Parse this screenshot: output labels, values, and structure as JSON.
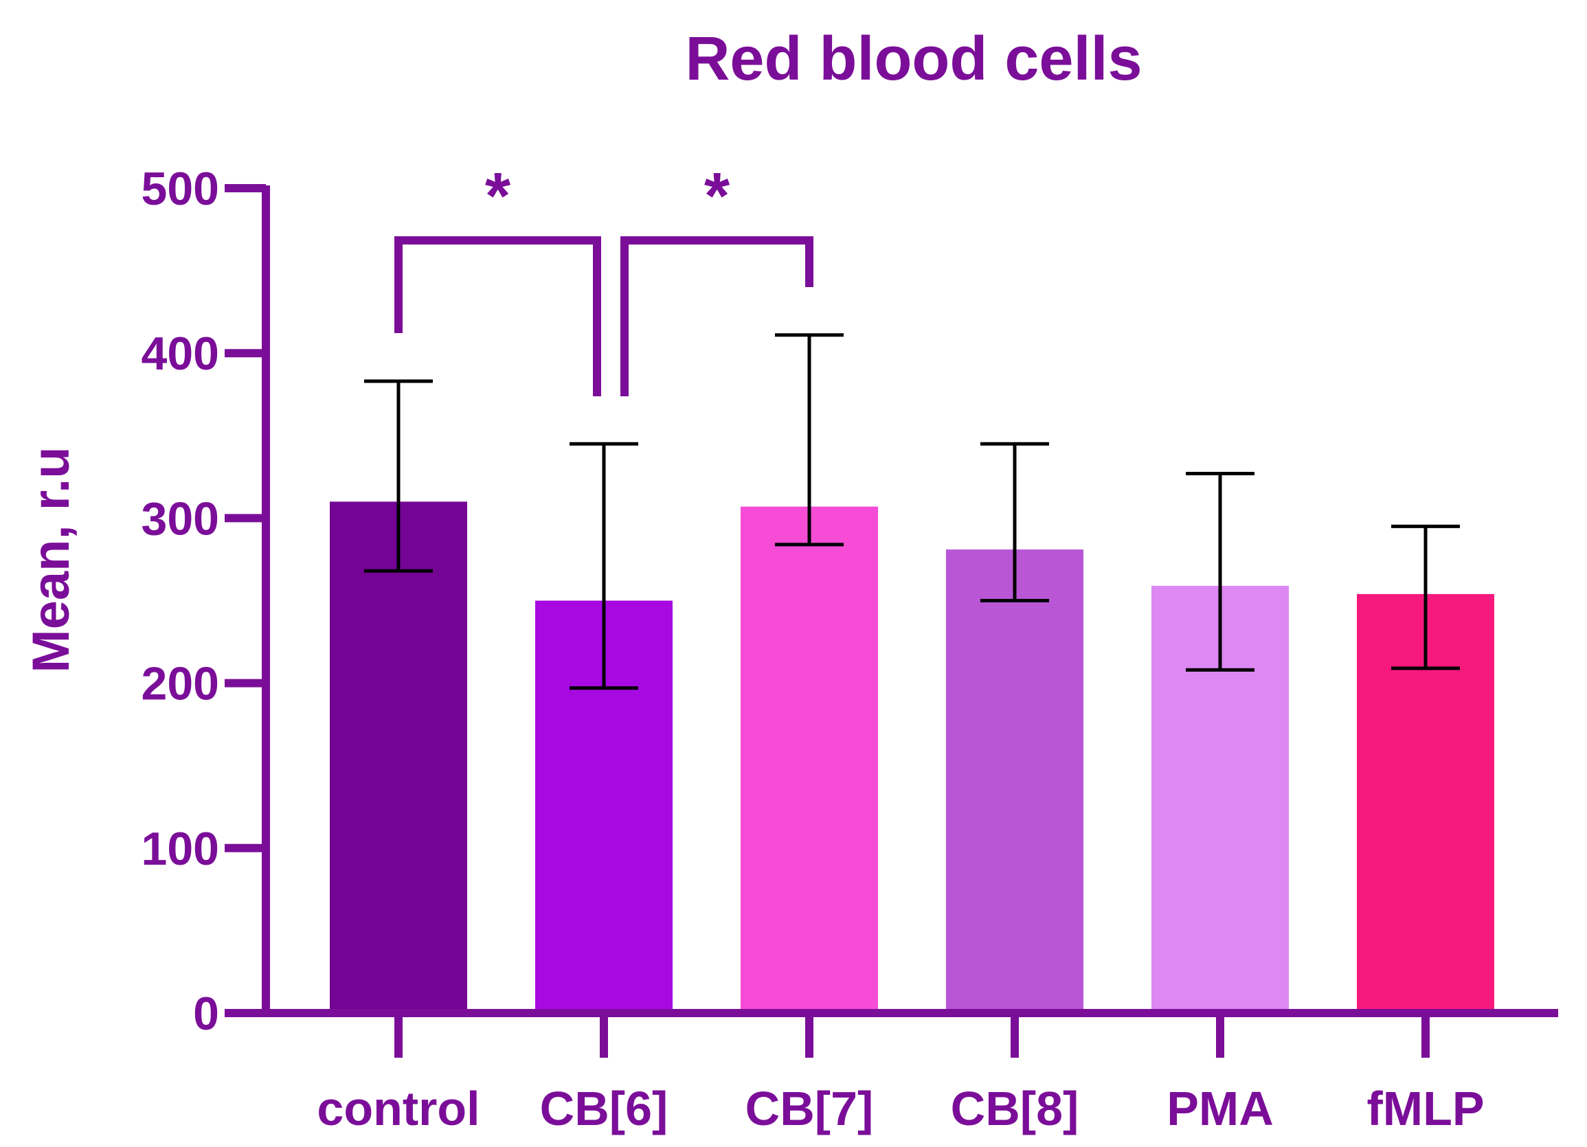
{
  "chart_data": {
    "type": "bar",
    "title": "Red blood cells",
    "xlabel": "",
    "ylabel": "Mean, r.u",
    "ylim": [
      0,
      500
    ],
    "yticks": [
      0,
      100,
      200,
      300,
      400,
      500
    ],
    "ytick_labels": [
      "0",
      "100",
      "200",
      "300",
      "400",
      "500"
    ],
    "categories": [
      "control",
      "CB[6]",
      "CB[7]",
      "CB[8]",
      "PMA",
      "fMLP"
    ],
    "values": [
      310,
      250,
      307,
      281,
      259,
      254
    ],
    "error_low": [
      268,
      197,
      284,
      250,
      208,
      209
    ],
    "error_high": [
      383,
      345,
      411,
      345,
      327,
      295
    ],
    "bar_colors": [
      "#740494",
      "#A60AE0",
      "#F64CD6",
      "#B856D6",
      "#DE88F4",
      "#F7187E"
    ],
    "axis_color": "#7B0E99",
    "error_color": "#000000",
    "significance": [
      {
        "from": "control",
        "to": "CB[6]",
        "label": "*"
      },
      {
        "from": "CB[6]",
        "to": "CB[7]",
        "label": "*"
      }
    ],
    "grid": false
  }
}
